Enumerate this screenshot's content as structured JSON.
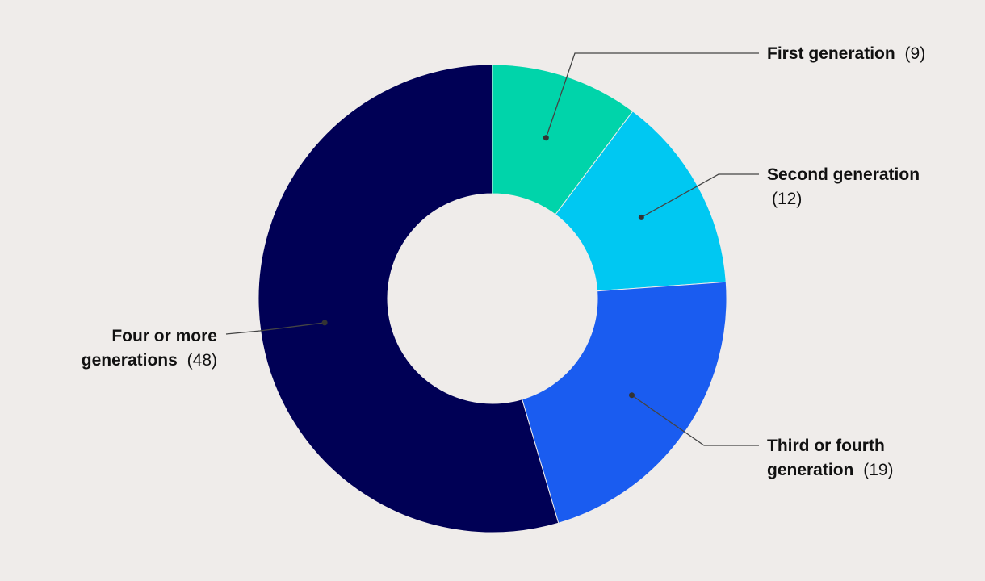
{
  "chart_data": {
    "type": "donut",
    "categories": [
      "First generation",
      "Second generation",
      "Third or fourth generation",
      "Four or more generations"
    ],
    "values": [
      9,
      12,
      19,
      48
    ],
    "value_labels": [
      "(9)",
      "(12)",
      "(19)",
      "(48)"
    ],
    "colors": [
      "#00d4aa",
      "#00c8f2",
      "#1a5cf0",
      "#000055"
    ]
  }
}
